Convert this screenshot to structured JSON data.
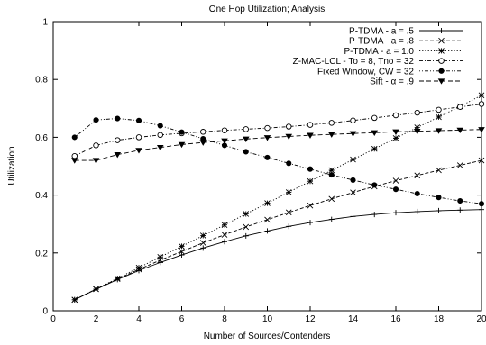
{
  "chart_data": {
    "type": "line",
    "title": "One Hop Utilization; Analysis",
    "xlabel": "Number of Sources/Contenders",
    "ylabel": "Utilization",
    "xlim": [
      0,
      20
    ],
    "ylim": [
      0,
      1
    ],
    "xticks": [
      "0",
      "2",
      "4",
      "6",
      "8",
      "10",
      "12",
      "14",
      "16",
      "18",
      "20"
    ],
    "yticks": [
      "0",
      "0.2",
      "0.4",
      "0.6",
      "0.8",
      "1"
    ],
    "grid": false,
    "legend_position": "top-right",
    "x": [
      1,
      2,
      3,
      4,
      5,
      6,
      7,
      8,
      9,
      10,
      11,
      12,
      13,
      14,
      15,
      16,
      17,
      18,
      19,
      20
    ],
    "series": [
      {
        "name": "P-TDMA - a = .5",
        "marker": "plus",
        "dash": "solid",
        "values": [
          0.038,
          0.074,
          0.108,
          0.139,
          0.167,
          0.193,
          0.217,
          0.239,
          0.259,
          0.276,
          0.292,
          0.305,
          0.316,
          0.326,
          0.333,
          0.339,
          0.343,
          0.346,
          0.348,
          0.35
        ]
      },
      {
        "name": "P-TDMA - a = .8",
        "marker": "cross",
        "dash": "dashed",
        "values": [
          0.038,
          0.075,
          0.11,
          0.143,
          0.175,
          0.205,
          0.235,
          0.263,
          0.29,
          0.315,
          0.34,
          0.364,
          0.387,
          0.409,
          0.43,
          0.45,
          0.468,
          0.486,
          0.503,
          0.52
        ]
      },
      {
        "name": "P-TDMA - a = 1.0",
        "marker": "star",
        "dash": "dotted",
        "values": [
          0.038,
          0.075,
          0.112,
          0.149,
          0.186,
          0.223,
          0.26,
          0.297,
          0.335,
          0.372,
          0.41,
          0.448,
          0.486,
          0.523,
          0.56,
          0.597,
          0.634,
          0.67,
          0.707,
          0.745
        ]
      },
      {
        "name": "Z-MAC-LCL - To = 8, Tno = 32",
        "marker": "circle-open",
        "dash": "dashdot",
        "values": [
          0.535,
          0.572,
          0.59,
          0.6,
          0.608,
          0.614,
          0.619,
          0.624,
          0.628,
          0.632,
          0.637,
          0.643,
          0.65,
          0.658,
          0.667,
          0.676,
          0.685,
          0.695,
          0.705,
          0.715
        ]
      },
      {
        "name": "Fixed Window, CW = 32",
        "marker": "circle-filled",
        "dash": "dotdash",
        "values": [
          0.6,
          0.66,
          0.665,
          0.658,
          0.64,
          0.618,
          0.595,
          0.572,
          0.55,
          0.53,
          0.51,
          0.49,
          0.47,
          0.452,
          0.435,
          0.42,
          0.405,
          0.392,
          0.38,
          0.37
        ]
      },
      {
        "name": "Sift - α = .9",
        "marker": "triangle-down",
        "dash": "loosedash",
        "values": [
          0.52,
          0.52,
          0.54,
          0.555,
          0.565,
          0.575,
          0.582,
          0.588,
          0.594,
          0.599,
          0.603,
          0.607,
          0.61,
          0.613,
          0.616,
          0.619,
          0.621,
          0.623,
          0.625,
          0.627
        ]
      }
    ]
  }
}
